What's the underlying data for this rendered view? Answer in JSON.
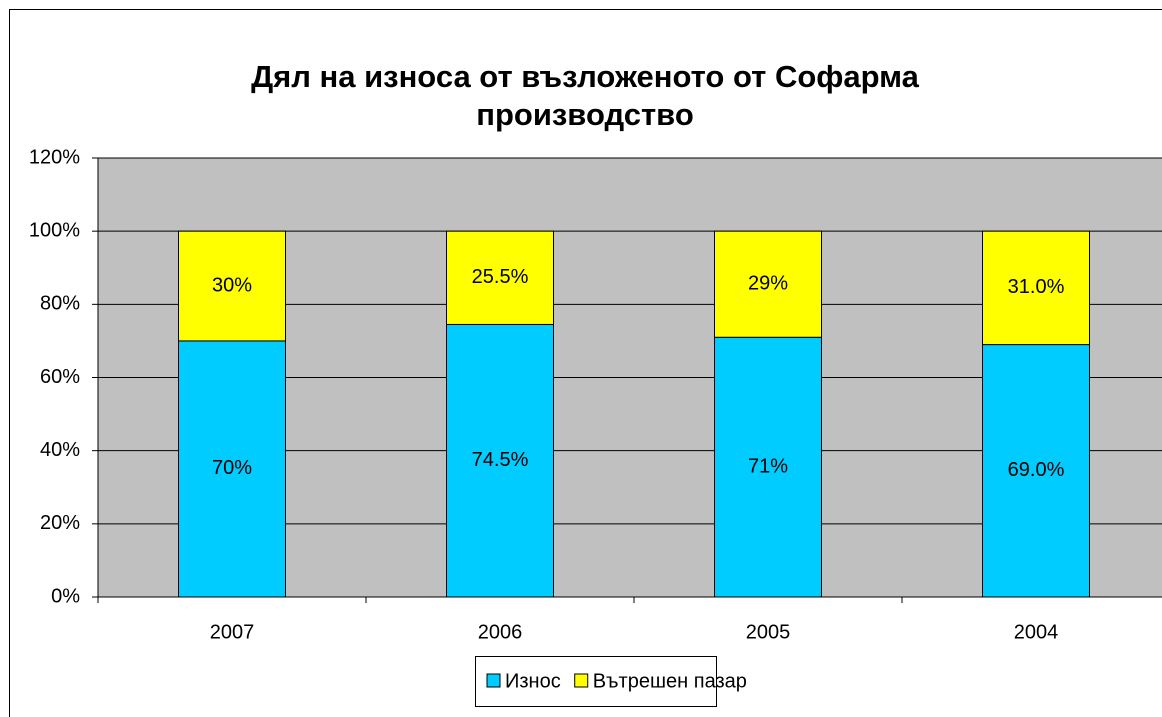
{
  "chart_data": {
    "type": "stacked-bar",
    "title": "Дял на износа от възложеното от Софарма производство",
    "categories": [
      "2007",
      "2006",
      "2005",
      "2004"
    ],
    "series": [
      {
        "name": "Износ",
        "color": "#00ccff",
        "values": [
          70,
          74.5,
          71,
          69
        ],
        "value_labels": [
          "70%",
          "74.5%",
          "71%",
          "69.0%"
        ]
      },
      {
        "name": "Вътрешен пазар",
        "color": "#ffff00",
        "values": [
          30,
          25.5,
          29,
          31
        ],
        "value_labels": [
          "30%",
          "25.5%",
          "29%",
          "31.0%"
        ]
      }
    ],
    "ylim": [
      0,
      120
    ],
    "yticks": [
      {
        "value": 0,
        "label": "0%"
      },
      {
        "value": 20,
        "label": "20%"
      },
      {
        "value": 40,
        "label": "40%"
      },
      {
        "value": 60,
        "label": "60%"
      },
      {
        "value": 80,
        "label": "80%"
      },
      {
        "value": 100,
        "label": "100%"
      },
      {
        "value": 120,
        "label": "120%"
      }
    ],
    "grid": true,
    "legend": "bottom"
  }
}
